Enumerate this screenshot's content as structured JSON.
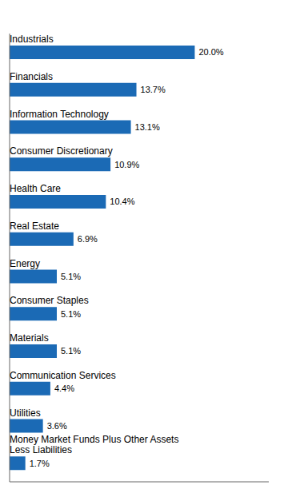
{
  "chart_data": {
    "type": "bar",
    "orientation": "horizontal",
    "categories": [
      "Industrials",
      "Financials",
      "Information Technology",
      "Consumer Discretionary",
      "Health Care",
      "Real Estate",
      "Energy",
      "Consumer Staples",
      "Materials",
      "Communication Services",
      "Utilities",
      "Money Market Funds Plus Other Assets\nLess Liabilities"
    ],
    "values": [
      20.0,
      13.7,
      13.1,
      10.9,
      10.4,
      6.9,
      5.1,
      5.1,
      5.1,
      4.4,
      3.6,
      1.7
    ],
    "value_labels": [
      "20.0%",
      "13.7%",
      "13.1%",
      "10.9%",
      "10.4%",
      "6.9%",
      "5.1%",
      "5.1%",
      "5.1%",
      "4.4%",
      "3.6%",
      "1.7%"
    ],
    "data_labels": true,
    "color": "#1b6ab5",
    "xlim": [
      0,
      28
    ],
    "tick_labels": false,
    "grid": false
  }
}
